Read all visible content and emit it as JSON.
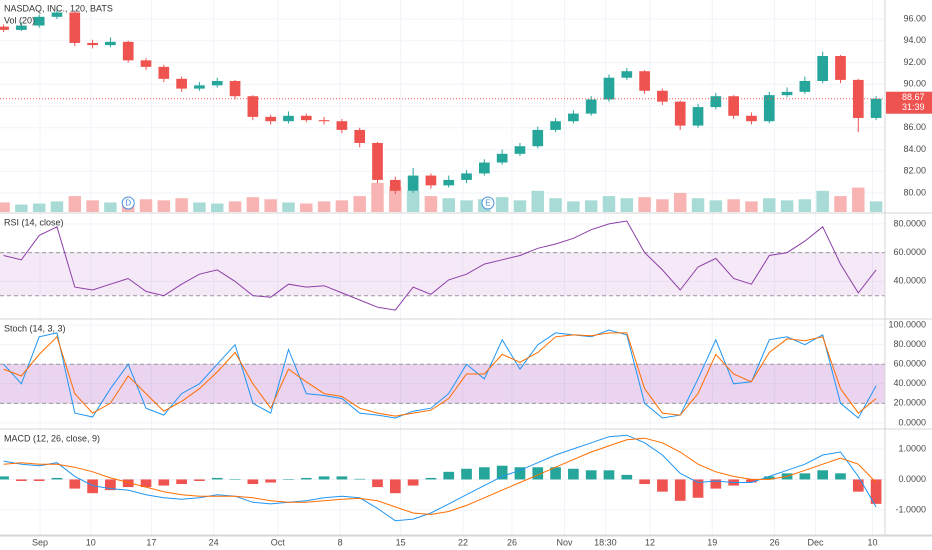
{
  "chart_data": [
    {
      "type": "candlestick",
      "title": "NASDAQ, INC., 120, BATS",
      "volume_title": "Vol (20)",
      "up_color": "#26a69a",
      "down_color": "#ef5350",
      "volume_up_color": "#a8dbd5",
      "volume_down_color": "#f7b4b3",
      "open": [
        95.3,
        95.0,
        95.4,
        96.2,
        96.6,
        93.8,
        93.6,
        93.9,
        92.2,
        91.6,
        90.5,
        89.6,
        89.9,
        90.3,
        88.9,
        87.0,
        86.6,
        87.1,
        86.7,
        86.6,
        85.8,
        84.6,
        81.2,
        80.2,
        81.6,
        80.7,
        81.2,
        81.8,
        82.8,
        83.6,
        84.3,
        85.8,
        86.6,
        87.3,
        88.6,
        90.6,
        91.2,
        89.4,
        88.4,
        86.2,
        87.9,
        88.9,
        87.1,
        86.6,
        89.0,
        89.3,
        90.3,
        92.6,
        90.4,
        86.9
      ],
      "high": [
        95.5,
        95.7,
        96.4,
        97.1,
        96.7,
        94.1,
        94.3,
        94.0,
        92.4,
        91.8,
        90.7,
        90.2,
        90.6,
        90.4,
        89.0,
        87.2,
        87.5,
        87.3,
        87.0,
        86.8,
        86.0,
        84.7,
        81.5,
        82.3,
        81.8,
        81.6,
        82.1,
        83.1,
        84.0,
        84.6,
        86.1,
        86.9,
        87.6,
        88.9,
        90.9,
        91.5,
        91.3,
        89.6,
        88.5,
        88.2,
        89.2,
        89.0,
        87.4,
        89.3,
        89.7,
        90.7,
        93.0,
        92.7,
        90.5,
        88.9
      ],
      "low": [
        94.8,
        94.9,
        95.2,
        96.0,
        93.5,
        93.3,
        93.4,
        92.0,
        91.3,
        90.2,
        89.3,
        89.4,
        89.7,
        88.6,
        86.7,
        86.3,
        86.4,
        86.5,
        86.3,
        85.5,
        84.2,
        80.9,
        79.9,
        80.0,
        80.4,
        80.5,
        80.9,
        81.6,
        82.6,
        83.4,
        84.1,
        85.6,
        86.4,
        87.1,
        88.4,
        90.4,
        89.1,
        88.1,
        85.8,
        86.0,
        87.7,
        86.8,
        86.3,
        86.4,
        88.8,
        89.1,
        90.1,
        90.1,
        85.6,
        86.7
      ],
      "close": [
        95.0,
        95.4,
        96.2,
        96.6,
        93.8,
        93.6,
        93.9,
        92.2,
        91.6,
        90.5,
        89.6,
        89.9,
        90.3,
        88.9,
        87.0,
        86.6,
        87.1,
        86.7,
        86.6,
        85.8,
        84.6,
        81.2,
        80.2,
        81.6,
        80.7,
        81.2,
        81.8,
        82.8,
        83.6,
        84.3,
        85.8,
        86.6,
        87.3,
        88.6,
        90.6,
        91.2,
        89.4,
        88.4,
        86.2,
        87.9,
        88.9,
        87.1,
        86.6,
        89.0,
        89.3,
        90.3,
        92.6,
        90.4,
        86.9,
        88.67
      ],
      "volume": [
        18,
        14,
        16,
        20,
        30,
        22,
        18,
        20,
        24,
        22,
        26,
        18,
        16,
        20,
        28,
        24,
        18,
        16,
        20,
        22,
        30,
        55,
        48,
        40,
        30,
        26,
        22,
        24,
        28,
        22,
        40,
        26,
        20,
        22,
        30,
        26,
        28,
        24,
        36,
        26,
        22,
        24,
        20,
        26,
        22,
        24,
        40,
        30,
        46,
        20
      ],
      "vlim": [
        0,
        400
      ],
      "ylim": [
        78.25,
        97.75
      ],
      "yticks": [
        {
          "value": 96,
          "label": "96.00"
        },
        {
          "value": 94,
          "label": "94.00"
        },
        {
          "value": 92,
          "label": "92.00"
        },
        {
          "value": 90,
          "label": "90.00"
        },
        {
          "value": 88,
          "label": "88.00"
        },
        {
          "value": 86,
          "label": "86.00"
        },
        {
          "value": 84,
          "label": "84.00"
        },
        {
          "value": 82,
          "label": "82.00"
        },
        {
          "value": 80,
          "label": "80.00"
        }
      ],
      "last_price": {
        "value": 88.67,
        "label": "88.67"
      },
      "countdown": "31:39",
      "price_line_color": "#ef5350",
      "events": [
        {
          "label": "D",
          "x": 7.0
        },
        {
          "label": "E",
          "x": 27.2
        }
      ],
      "grid": true
    },
    {
      "type": "line",
      "title": "RSI (14, close)",
      "series": [
        {
          "name": "RSI",
          "color": "#8e3fa8",
          "values": [
            58,
            55,
            72,
            78,
            36,
            34,
            38,
            42,
            33,
            30,
            38,
            45,
            48,
            40,
            30,
            29,
            38,
            36,
            37,
            32,
            27,
            22,
            20,
            36,
            31,
            41,
            45,
            52,
            55,
            58,
            63,
            66,
            70,
            76,
            80,
            82,
            60,
            48,
            34,
            50,
            56,
            42,
            38,
            58,
            60,
            68,
            78,
            52,
            32,
            48
          ]
        }
      ],
      "band": [
        30,
        60
      ],
      "band_color": "rgba(156,39,176,0.10)",
      "ylim": [
        14.5,
        86.9
      ],
      "yticks": [
        {
          "value": 80,
          "label": "80.0000"
        },
        {
          "value": 60,
          "label": "60.0000"
        },
        {
          "value": 40,
          "label": "40.0000"
        }
      ],
      "grid": true
    },
    {
      "type": "line",
      "title": "Stoch (14, 3, 3)",
      "series": [
        {
          "name": "%K",
          "color": "#2196f3",
          "values": [
            60,
            40,
            88,
            92,
            10,
            6,
            35,
            60,
            15,
            8,
            30,
            40,
            60,
            80,
            20,
            10,
            75,
            30,
            28,
            25,
            10,
            8,
            5,
            12,
            15,
            30,
            60,
            45,
            85,
            55,
            80,
            92,
            90,
            88,
            95,
            90,
            20,
            5,
            8,
            45,
            85,
            40,
            42,
            85,
            88,
            80,
            90,
            20,
            5,
            38
          ]
        },
        {
          "name": "%D",
          "color": "#ff6d00",
          "values": [
            55,
            48,
            70,
            88,
            30,
            10,
            20,
            48,
            30,
            12,
            22,
            35,
            52,
            72,
            40,
            15,
            55,
            42,
            30,
            27,
            15,
            10,
            7,
            10,
            13,
            25,
            50,
            50,
            70,
            62,
            72,
            88,
            90,
            89,
            92,
            92,
            35,
            10,
            8,
            30,
            70,
            50,
            42,
            72,
            86,
            84,
            88,
            35,
            10,
            25
          ]
        }
      ],
      "band": [
        20,
        60
      ],
      "band_color": "rgba(156,39,176,0.20)",
      "ylim": [
        -5.2,
        105.2
      ],
      "yticks": [
        {
          "value": 100,
          "label": "100.0000"
        },
        {
          "value": 80,
          "label": "80.0000"
        },
        {
          "value": 60,
          "label": "60.0000"
        },
        {
          "value": 40,
          "label": "40.0000"
        },
        {
          "value": 20,
          "label": "20.0000"
        },
        {
          "value": 0,
          "label": "0.0000"
        }
      ],
      "grid": true
    },
    {
      "type": "macd",
      "title": "MACD (12, 26, close, 9)",
      "series": [
        {
          "name": "MACD",
          "color": "#2196f3",
          "values": [
            0.6,
            0.5,
            0.45,
            0.55,
            0.1,
            -0.2,
            -0.3,
            -0.35,
            -0.5,
            -0.6,
            -0.65,
            -0.6,
            -0.5,
            -0.55,
            -0.75,
            -0.8,
            -0.75,
            -0.7,
            -0.6,
            -0.55,
            -0.6,
            -0.95,
            -1.35,
            -1.3,
            -1.1,
            -0.8,
            -0.5,
            -0.2,
            0.1,
            0.3,
            0.55,
            0.8,
            1.0,
            1.2,
            1.4,
            1.45,
            1.2,
            0.8,
            0.2,
            -0.1,
            -0.05,
            -0.1,
            -0.1,
            0.1,
            0.3,
            0.5,
            0.8,
            0.9,
            0.1,
            -0.9
          ]
        },
        {
          "name": "Signal",
          "color": "#ff6d00",
          "values": [
            0.5,
            0.55,
            0.5,
            0.5,
            0.4,
            0.25,
            0.05,
            -0.1,
            -0.25,
            -0.4,
            -0.5,
            -0.55,
            -0.55,
            -0.55,
            -0.6,
            -0.7,
            -0.75,
            -0.75,
            -0.7,
            -0.65,
            -0.62,
            -0.7,
            -0.9,
            -1.1,
            -1.15,
            -1.05,
            -0.85,
            -0.6,
            -0.35,
            -0.1,
            0.15,
            0.4,
            0.65,
            0.9,
            1.1,
            1.3,
            1.35,
            1.2,
            0.9,
            0.5,
            0.25,
            0.1,
            0.0,
            0.0,
            0.1,
            0.3,
            0.5,
            0.7,
            0.5,
            -0.1
          ]
        }
      ],
      "histogram": [
        0.1,
        -0.05,
        -0.05,
        0.05,
        -0.3,
        -0.45,
        -0.35,
        -0.25,
        -0.25,
        -0.2,
        -0.15,
        -0.05,
        0.05,
        0,
        -0.15,
        -0.1,
        0,
        0.05,
        0.1,
        0.1,
        0.02,
        -0.25,
        -0.45,
        -0.2,
        0.05,
        0.25,
        0.35,
        0.4,
        0.45,
        0.4,
        0.4,
        0.4,
        0.35,
        0.3,
        0.3,
        0.15,
        -0.15,
        -0.4,
        -0.7,
        -0.6,
        -0.3,
        -0.2,
        -0.1,
        0.1,
        0.2,
        0.2,
        0.3,
        0.2,
        -0.4,
        -0.8
      ],
      "histogram_up_color": "#26a69a",
      "histogram_down_color": "#ef5350",
      "ylim": [
        -1.82,
        1.62
      ],
      "yticks": [
        {
          "value": 1,
          "label": "1.0000"
        },
        {
          "value": 0,
          "label": "0.0000"
        },
        {
          "value": -1,
          "label": "-1.0000"
        }
      ],
      "xlim": [
        -0.2,
        49.5
      ],
      "xticks": [
        {
          "value": 2.05,
          "label": "Sep"
        },
        {
          "value": 4.9,
          "label": "10"
        },
        {
          "value": 8.3,
          "label": "17"
        },
        {
          "value": 11.8,
          "label": "24"
        },
        {
          "value": 15.4,
          "label": "Oct"
        },
        {
          "value": 18.9,
          "label": "8"
        },
        {
          "value": 22.3,
          "label": "15"
        },
        {
          "value": 25.8,
          "label": "22"
        },
        {
          "value": 28.55,
          "label": "26"
        },
        {
          "value": 31.5,
          "label": "Nov"
        },
        {
          "value": 33.8,
          "label": "18:30"
        },
        {
          "value": 36.3,
          "label": "12"
        },
        {
          "value": 39.8,
          "label": "19"
        },
        {
          "value": 43.3,
          "label": "26"
        },
        {
          "value": 45.6,
          "label": "Dec"
        },
        {
          "value": 48.8,
          "label": "10"
        }
      ],
      "grid": true
    }
  ]
}
